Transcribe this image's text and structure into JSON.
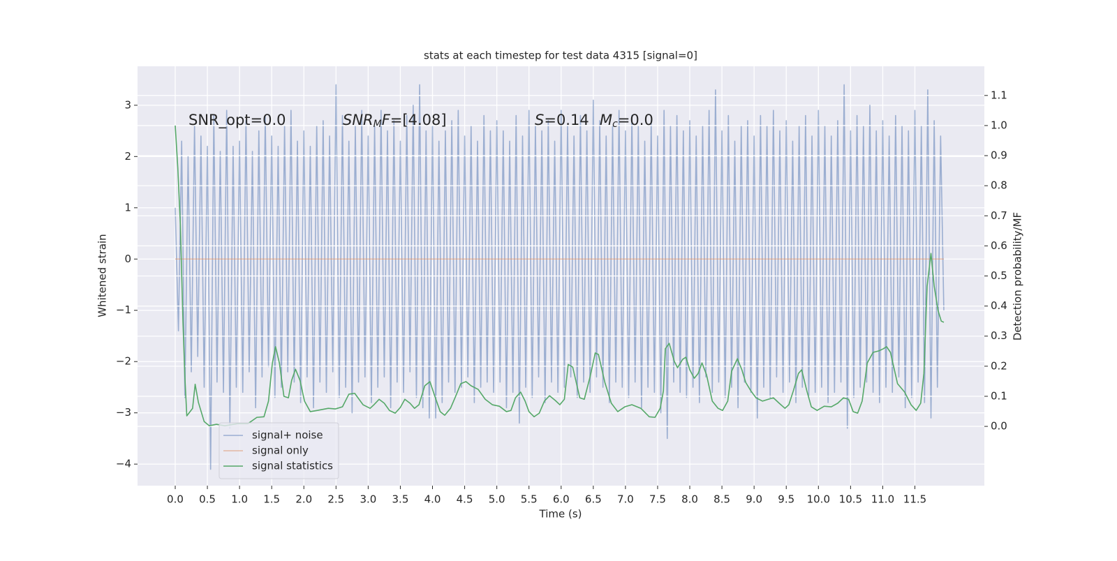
{
  "chart_data": {
    "type": "line",
    "title": "stats at each timestep for test data 4315 [signal=0]",
    "xlabel": "Time (s)",
    "ylabel": "Whitened strain",
    "y2label": "Detection probability/MF",
    "annotations": [
      [
        "SNR_opt=0.0"
      ],
      [
        "SNR",
        "M",
        "F",
        "=[4.08]"
      ],
      [
        "S",
        "=0.14"
      ],
      [
        "M",
        "c",
        "=0.0"
      ]
    ],
    "xlim": [
      -0.586,
      12.58
    ],
    "ylim": [
      -4.42,
      3.76
    ],
    "y2lim": [
      -0.197,
      1.197
    ],
    "xticks": [
      {
        "value": 0,
        "label": "0.0"
      },
      0.5,
      {
        "value": 1,
        "label": "1.0"
      },
      1.5,
      {
        "value": 2,
        "label": "2.0"
      },
      2.5,
      {
        "value": 3,
        "label": "3.0"
      },
      3.5,
      {
        "value": 4,
        "label": "4.0"
      },
      4.5,
      {
        "value": 5,
        "label": "5.0"
      },
      5.5,
      {
        "value": 6,
        "label": "6.0"
      },
      6.5,
      {
        "value": 7,
        "label": "7.0"
      },
      7.5,
      {
        "value": 8,
        "label": "8.0"
      },
      8.5,
      {
        "value": 9,
        "label": "9.0"
      },
      9.5,
      {
        "value": 10,
        "label": "10.0"
      },
      10.5,
      {
        "value": 11,
        "label": "11.0"
      },
      11.5
    ],
    "yticks": [
      {
        "value": -4,
        "label": "−4"
      },
      {
        "value": -3,
        "label": "−3"
      },
      {
        "value": -2,
        "label": "−2"
      },
      {
        "value": -1,
        "label": "−1"
      },
      0,
      1,
      2,
      3
    ],
    "y2ticks": [
      {
        "value": 0,
        "label": "0.0"
      },
      0.1,
      0.2,
      0.3,
      0.4,
      0.5,
      0.6,
      0.7,
      0.8,
      0.9,
      {
        "value": 1,
        "label": "1.0"
      },
      1.1
    ],
    "grid": true,
    "legend": "lower left",
    "series": [
      {
        "name": "signal+ noise",
        "color": "#4c72b0",
        "opacity": 0.5,
        "x": [
          0,
          0.05,
          0.1,
          0.15,
          0.2,
          0.25,
          0.3,
          0.35,
          0.4,
          0.45,
          0.5,
          0.55,
          0.6,
          0.65,
          0.7,
          0.75,
          0.8,
          0.85,
          0.9,
          0.95,
          1,
          1.05,
          1.1,
          1.15,
          1.2,
          1.25,
          1.3,
          1.35,
          1.4,
          1.45,
          1.5,
          1.55,
          1.6,
          1.65,
          1.7,
          1.75,
          1.8,
          1.85,
          1.9,
          1.95,
          2,
          2.05,
          2.1,
          2.15,
          2.2,
          2.25,
          2.3,
          2.35,
          2.4,
          2.45,
          2.5,
          2.55,
          2.6,
          2.65,
          2.7,
          2.75,
          2.8,
          2.85,
          2.9,
          2.95,
          3,
          3.05,
          3.1,
          3.15,
          3.2,
          3.25,
          3.3,
          3.35,
          3.4,
          3.45,
          3.5,
          3.55,
          3.6,
          3.65,
          3.7,
          3.75,
          3.8,
          3.85,
          3.9,
          3.95,
          4,
          4.05,
          4.1,
          4.15,
          4.2,
          4.25,
          4.3,
          4.35,
          4.4,
          4.45,
          4.5,
          4.55,
          4.6,
          4.65,
          4.7,
          4.75,
          4.8,
          4.85,
          4.9,
          4.95,
          5,
          5.05,
          5.1,
          5.15,
          5.2,
          5.25,
          5.3,
          5.35,
          5.4,
          5.45,
          5.5,
          5.55,
          5.6,
          5.65,
          5.7,
          5.75,
          5.8,
          5.85,
          5.9,
          5.95,
          6,
          6.05,
          6.1,
          6.15,
          6.2,
          6.25,
          6.3,
          6.35,
          6.4,
          6.45,
          6.5,
          6.55,
          6.6,
          6.65,
          6.7,
          6.75,
          6.8,
          6.85,
          6.9,
          6.95,
          7,
          7.05,
          7.1,
          7.15,
          7.2,
          7.25,
          7.3,
          7.35,
          7.4,
          7.45,
          7.5,
          7.55,
          7.6,
          7.65,
          7.7,
          7.75,
          7.8,
          7.85,
          7.9,
          7.95,
          8,
          8.05,
          8.1,
          8.15,
          8.2,
          8.25,
          8.3,
          8.35,
          8.4,
          8.45,
          8.5,
          8.55,
          8.6,
          8.65,
          8.7,
          8.75,
          8.8,
          8.85,
          8.9,
          8.95,
          9,
          9.05,
          9.1,
          9.15,
          9.2,
          9.25,
          9.3,
          9.35,
          9.4,
          9.45,
          9.5,
          9.55,
          9.6,
          9.65,
          9.7,
          9.75,
          9.8,
          9.85,
          9.9,
          9.95,
          10,
          10.05,
          10.1,
          10.15,
          10.2,
          10.25,
          10.3,
          10.35,
          10.4,
          10.45,
          10.5,
          10.55,
          10.6,
          10.65,
          10.7,
          10.75,
          10.8,
          10.85,
          10.9,
          10.95,
          11,
          11.05,
          11.1,
          11.15,
          11.2,
          11.25,
          11.3,
          11.35,
          11.4,
          11.45,
          11.5,
          11.55,
          11.6,
          11.65,
          11.7,
          11.75,
          11.8,
          11.85,
          11.9,
          11.95
        ],
        "values": [
          1.0,
          -1.4,
          2.3,
          -2.7,
          2.0,
          -2.2,
          2.6,
          -1.9,
          2.4,
          -2.5,
          2.2,
          -4.1,
          2.8,
          -2.4,
          2.1,
          -2.6,
          2.9,
          -3.3,
          2.2,
          -2.5,
          2.3,
          -2.6,
          2.7,
          -2.2,
          2.1,
          -2.9,
          2.5,
          -2.3,
          2.8,
          -2.1,
          2.4,
          -2.7,
          2.2,
          -2.5,
          2.6,
          -2.2,
          2.9,
          -2.4,
          2.3,
          -2.8,
          2.5,
          -2.3,
          2.2,
          -2.9,
          2.6,
          -2.4,
          2.7,
          -2.6,
          2.4,
          -2.2,
          3.4,
          -2.7,
          2.8,
          -2.5,
          2.3,
          -3.0,
          2.6,
          -2.4,
          2.9,
          -2.3,
          2.4,
          -2.8,
          2.6,
          -2.5,
          2.9,
          -2.3,
          2.5,
          -2.9,
          2.7,
          -2.4,
          2.3,
          -2.6,
          2.8,
          -2.2,
          3.0,
          -2.7,
          3.4,
          -2.9,
          2.5,
          -3.1,
          2.6,
          -3.1,
          2.3,
          -2.8,
          2.5,
          -2.4,
          2.7,
          -2.6,
          2.9,
          -2.5,
          2.4,
          -2.3,
          2.6,
          -2.8,
          2.3,
          -2.5,
          2.8,
          -2.4,
          2.5,
          -2.6,
          2.7,
          -2.4,
          2.5,
          -2.9,
          2.3,
          -2.6,
          2.8,
          -3.2,
          2.4,
          -2.5,
          2.9,
          -2.7,
          2.6,
          -2.3,
          2.5,
          -2.8,
          2.7,
          -2.4,
          2.3,
          -2.6,
          2.9,
          -2.5,
          2.6,
          -2.3,
          2.4,
          -2.7,
          2.8,
          -2.4,
          2.5,
          -2.6,
          3.1,
          -2.3,
          2.7,
          -2.5,
          2.4,
          -2.8,
          2.6,
          -2.4,
          2.9,
          -2.5,
          2.5,
          -2.7,
          2.8,
          -2.4,
          2.6,
          -2.9,
          2.3,
          -2.5,
          2.7,
          -2.6,
          2.4,
          -3.0,
          2.9,
          -3.5,
          2.6,
          -2.4,
          2.8,
          -2.6,
          2.5,
          -2.7,
          2.7,
          -2.5,
          2.4,
          -2.8,
          2.6,
          -2.3,
          2.9,
          -2.6,
          3.3,
          -2.4,
          2.5,
          -2.7,
          2.8,
          -2.5,
          2.3,
          -2.9,
          2.6,
          -2.4,
          2.7,
          -2.6,
          2.4,
          -3.1,
          2.8,
          -2.5,
          2.6,
          -2.7,
          2.9,
          -2.3,
          2.5,
          -2.6,
          2.7,
          -2.4,
          2.3,
          -2.8,
          2.6,
          -2.5,
          2.8,
          -2.7,
          2.4,
          -2.6,
          2.9,
          -2.5,
          2.6,
          -2.8,
          2.4,
          -2.6,
          2.7,
          -2.4,
          3.4,
          -3.3,
          2.5,
          -2.7,
          2.8,
          -2.5,
          2.6,
          -2.4,
          3.0,
          -2.6,
          2.5,
          -2.8,
          2.7,
          -2.5,
          2.4,
          -2.6,
          2.8,
          -2.3,
          2.6,
          -2.9,
          2.5,
          -2.7,
          2.9,
          -2.4,
          2.6,
          -2.8,
          3.3,
          -3.1,
          2.7,
          -2.5,
          2.4,
          -1.0
        ]
      },
      {
        "name": "signal only",
        "color": "#dd8452",
        "opacity": 0.5,
        "x": [
          0,
          11.95
        ],
        "values": [
          0,
          0
        ]
      },
      {
        "name": "signal statistics",
        "color": "#55a868",
        "opacity": 1,
        "axis": "y2",
        "x": [
          0,
          0.04,
          0.08,
          0.12,
          0.15,
          0.18,
          0.27,
          0.31,
          0.36,
          0.45,
          0.53,
          0.64,
          0.77,
          0.97,
          1.13,
          1.27,
          1.38,
          1.45,
          1.51,
          1.56,
          1.62,
          1.69,
          1.76,
          1.81,
          1.87,
          1.94,
          2.01,
          2.1,
          2.21,
          2.38,
          2.49,
          2.6,
          2.7,
          2.79,
          2.92,
          3.03,
          3.09,
          3.17,
          3.25,
          3.33,
          3.42,
          3.5,
          3.57,
          3.65,
          3.72,
          3.79,
          3.88,
          3.96,
          4.03,
          4.12,
          4.19,
          4.28,
          4.36,
          4.44,
          4.52,
          4.6,
          4.71,
          4.82,
          4.93,
          5.04,
          5.15,
          5.22,
          5.29,
          5.37,
          5.44,
          5.5,
          5.58,
          5.66,
          5.74,
          5.82,
          5.91,
          5.98,
          6.05,
          6.11,
          6.18,
          6.29,
          6.36,
          6.45,
          6.53,
          6.58,
          6.68,
          6.78,
          6.88,
          6.99,
          7.1,
          7.24,
          7.37,
          7.46,
          7.54,
          7.59,
          7.62,
          7.68,
          7.76,
          7.81,
          7.89,
          7.94,
          8.0,
          8.07,
          8.13,
          8.19,
          8.26,
          8.35,
          8.44,
          8.51,
          8.59,
          8.65,
          8.74,
          8.81,
          8.87,
          8.95,
          9.03,
          9.13,
          9.22,
          9.3,
          9.39,
          9.48,
          9.54,
          9.61,
          9.69,
          9.74,
          9.82,
          9.89,
          9.98,
          10.09,
          10.2,
          10.3,
          10.39,
          10.47,
          10.54,
          10.61,
          10.68,
          10.76,
          10.85,
          10.94,
          11.01,
          11.06,
          11.12,
          11.23,
          11.34,
          11.44,
          11.52,
          11.59,
          11.64,
          11.69,
          11.75,
          11.8,
          11.86,
          11.91,
          11.95
        ],
        "values": [
          1.0,
          0.86,
          0.67,
          0.35,
          0.165,
          0.035,
          0.06,
          0.14,
          0.08,
          0.016,
          0.002,
          0.007,
          0.002,
          0.009,
          0.009,
          0.03,
          0.032,
          0.084,
          0.21,
          0.265,
          0.21,
          0.1,
          0.095,
          0.153,
          0.19,
          0.153,
          0.084,
          0.049,
          0.053,
          0.06,
          0.058,
          0.065,
          0.107,
          0.11,
          0.072,
          0.06,
          0.072,
          0.09,
          0.077,
          0.053,
          0.044,
          0.063,
          0.09,
          0.077,
          0.06,
          0.072,
          0.135,
          0.149,
          0.104,
          0.049,
          0.037,
          0.06,
          0.1,
          0.142,
          0.149,
          0.135,
          0.123,
          0.09,
          0.072,
          0.067,
          0.049,
          0.053,
          0.095,
          0.114,
          0.084,
          0.049,
          0.032,
          0.044,
          0.084,
          0.102,
          0.086,
          0.072,
          0.09,
          0.206,
          0.197,
          0.095,
          0.09,
          0.165,
          0.244,
          0.239,
          0.146,
          0.077,
          0.049,
          0.065,
          0.072,
          0.06,
          0.032,
          0.03,
          0.06,
          0.118,
          0.258,
          0.276,
          0.216,
          0.195,
          0.223,
          0.23,
          0.188,
          0.16,
          0.176,
          0.211,
          0.172,
          0.084,
          0.06,
          0.053,
          0.084,
          0.183,
          0.225,
          0.188,
          0.146,
          0.118,
          0.095,
          0.084,
          0.09,
          0.095,
          0.077,
          0.06,
          0.072,
          0.118,
          0.176,
          0.188,
          0.118,
          0.065,
          0.053,
          0.067,
          0.065,
          0.077,
          0.095,
          0.09,
          0.049,
          0.044,
          0.084,
          0.211,
          0.246,
          0.251,
          0.258,
          0.265,
          0.246,
          0.142,
          0.114,
          0.072,
          0.053,
          0.077,
          0.176,
          0.466,
          0.575,
          0.466,
          0.385,
          0.35,
          0.346
        ]
      }
    ]
  }
}
